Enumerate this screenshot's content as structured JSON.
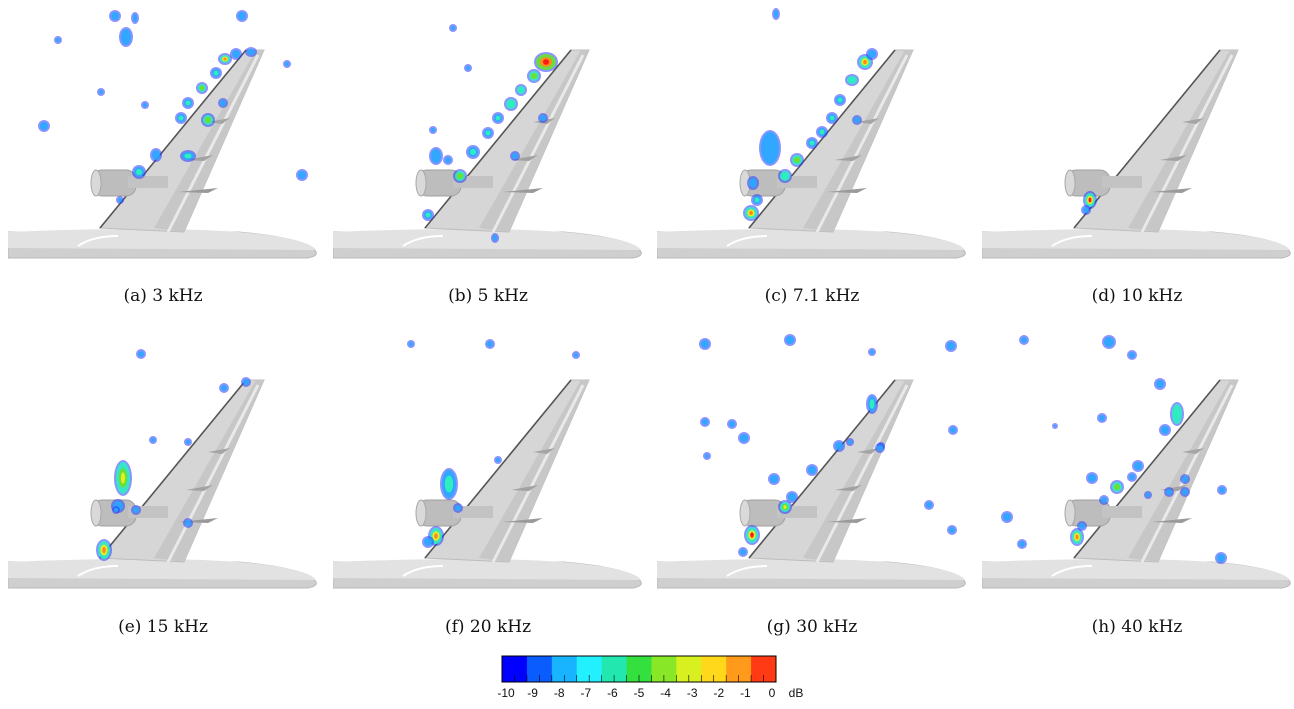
{
  "figure": {
    "panels": [
      {
        "caption": "(a)  3 kHz"
      },
      {
        "caption": "(b)  5 kHz"
      },
      {
        "caption": "(c)  7.1 kHz"
      },
      {
        "caption": "(d)  10 kHz"
      },
      {
        "caption": "(e)  15 kHz"
      },
      {
        "caption": "(f)  20 kHz"
      },
      {
        "caption": "(g)  30 kHz"
      },
      {
        "caption": "(h)  40 kHz"
      }
    ]
  },
  "colorbar": {
    "tick_labels": [
      "-10",
      "-9",
      "-8",
      "-7",
      "-6",
      "-5",
      "-4",
      "-3",
      "-2",
      "-1",
      "0"
    ],
    "unit": "dB",
    "range": [
      -10,
      0
    ],
    "colors": [
      "#0000ff",
      "#0a5cff",
      "#18b4ff",
      "#22f0ff",
      "#22e8b0",
      "#33e03d",
      "#88e828",
      "#d8f020",
      "#ffd81c",
      "#ff9a1a",
      "#ff3a14"
    ]
  }
}
